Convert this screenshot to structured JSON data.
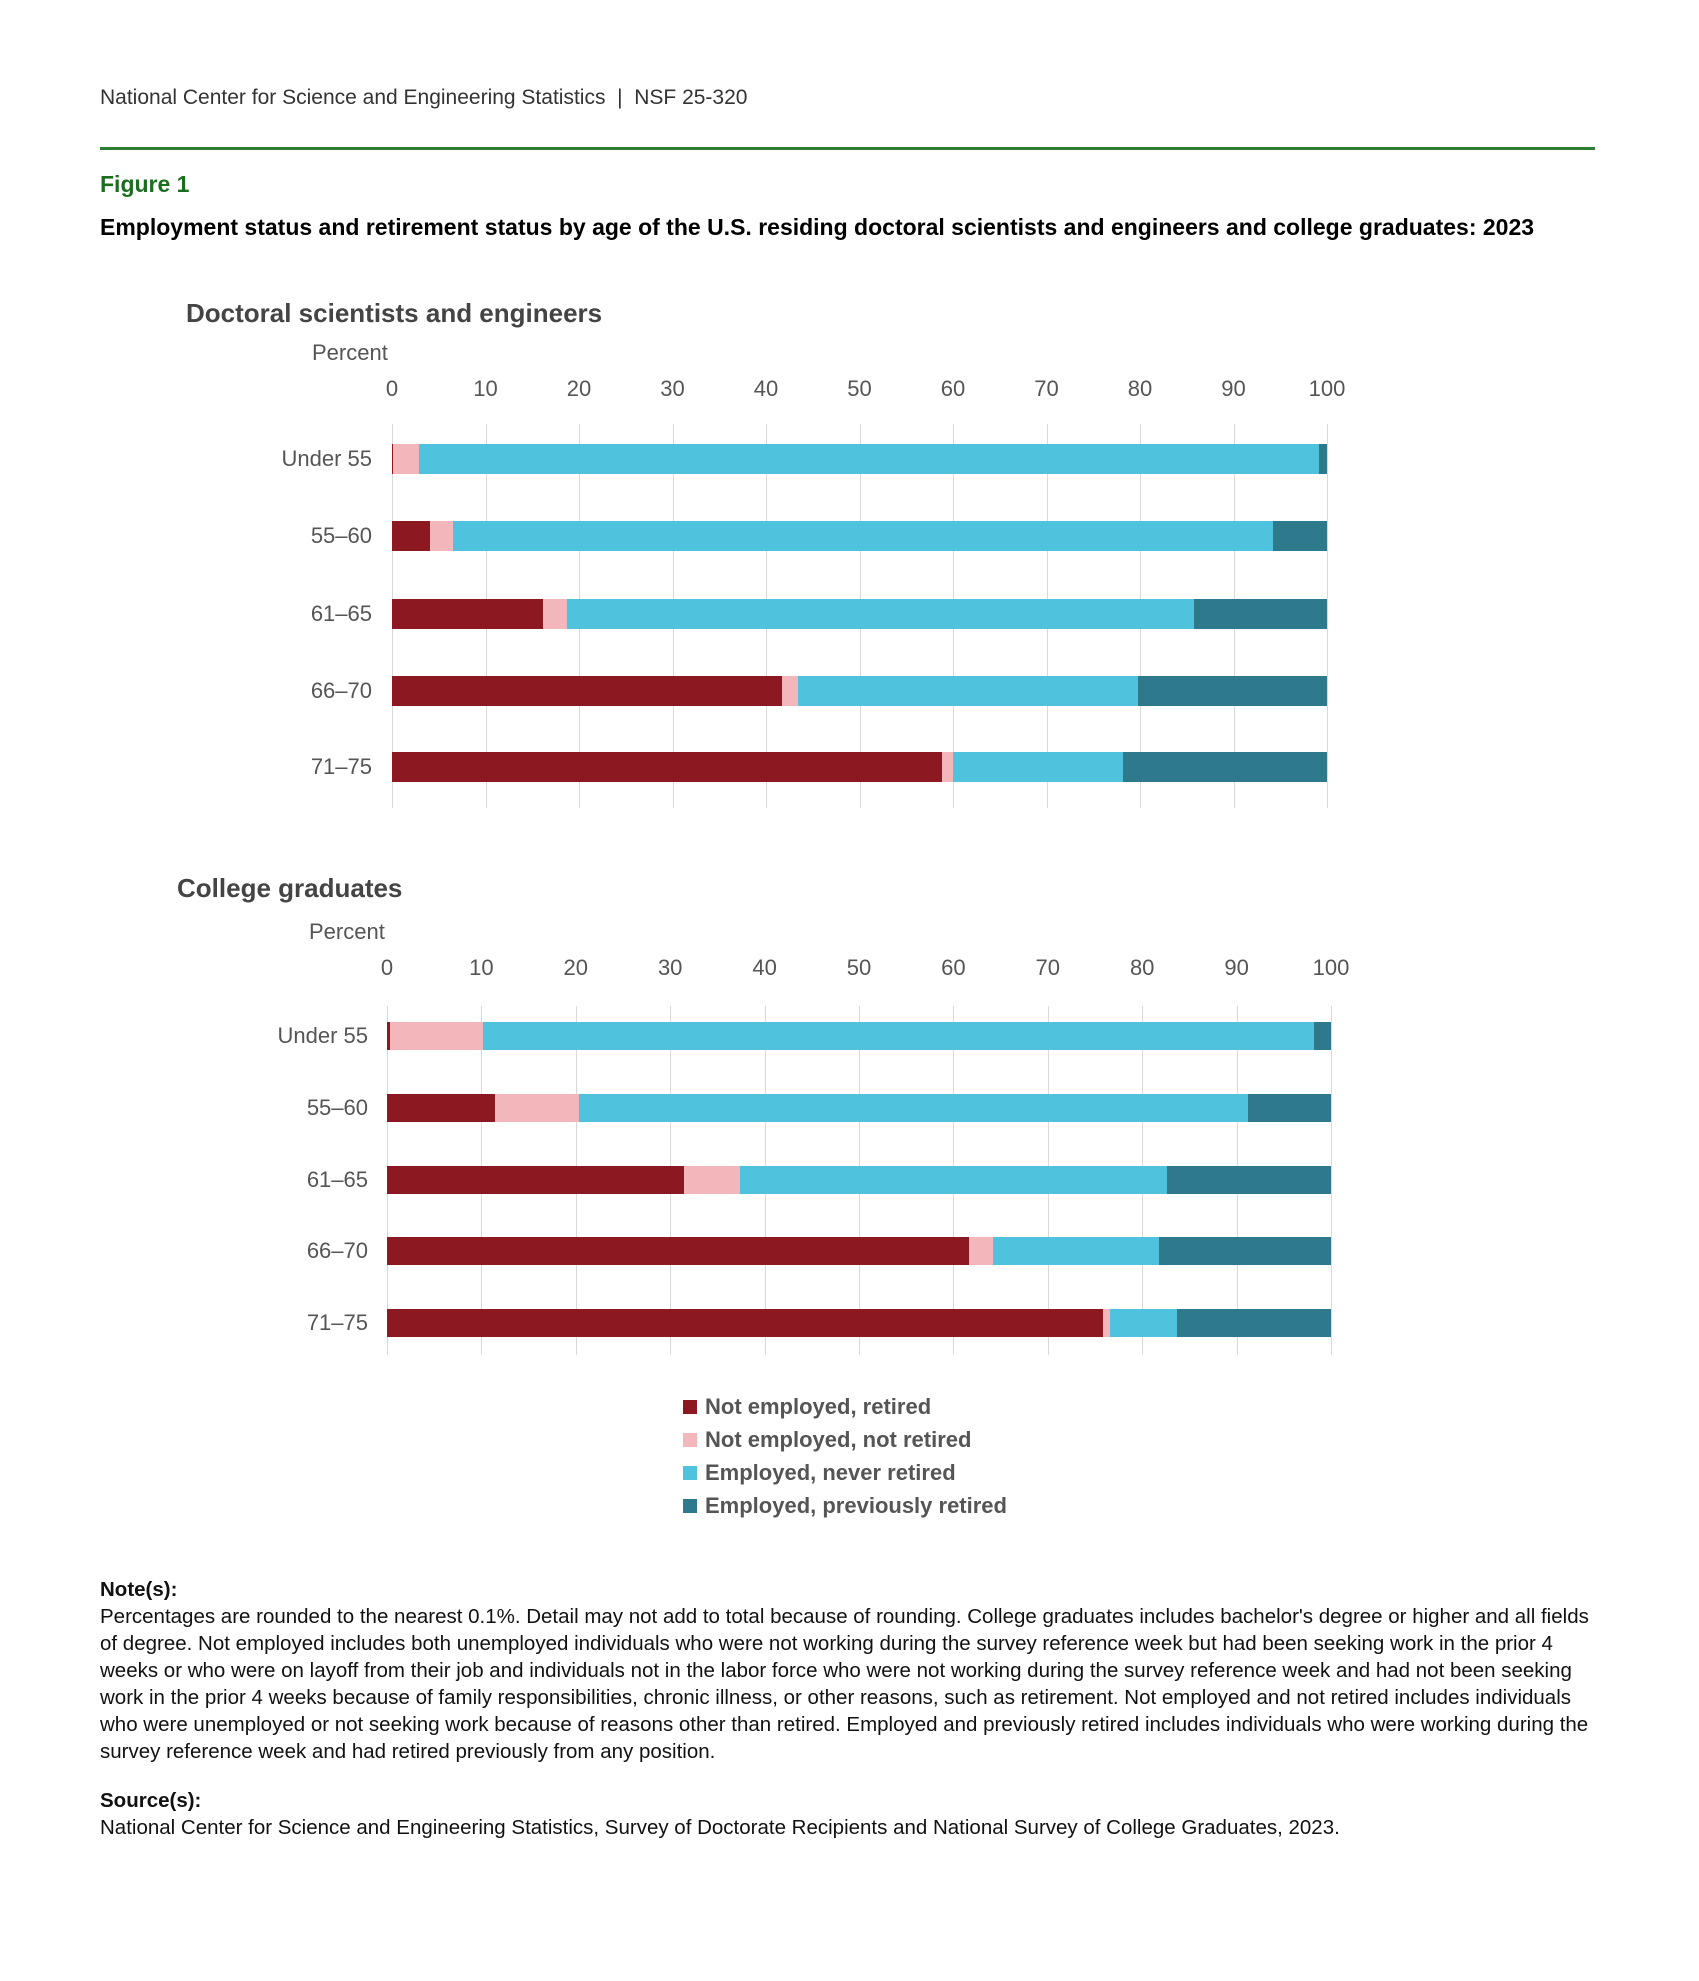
{
  "header": {
    "text": "National Center for Science and Engineering Statistics  |  NSF 25-320"
  },
  "figure": {
    "label": "Figure 1",
    "title": "Employment status and retirement status by age of the U.S. residing doctoral scientists and engineers and college graduates: 2023"
  },
  "colors": {
    "Not employed, retired": "#8c1822",
    "Not employed, not retired": "#f3b6bb",
    "Employed, never retired": "#4fc2de",
    "Employed, previously retired": "#2e7a8c"
  },
  "legend": [
    "Not employed, retired",
    "Not employed, not retired",
    "Employed, never retired",
    "Employed, previously retired"
  ],
  "chart_data": [
    {
      "type": "bar",
      "orientation": "horizontal",
      "stacked": true,
      "title": "Doctoral scientists and engineers",
      "xlabel": "Percent",
      "xlim": [
        0,
        100
      ],
      "xticks": [
        "0",
        "10",
        "20",
        "30",
        "40",
        "50",
        "60",
        "70",
        "80",
        "90",
        "100"
      ],
      "categories": [
        "Under 55",
        "55–60",
        "61–65",
        "66–70",
        "71–75"
      ],
      "series": [
        {
          "name": "Not employed, retired",
          "values": [
            0.1,
            4.1,
            16.2,
            41.7,
            58.8
          ]
        },
        {
          "name": "Not employed, not retired",
          "values": [
            2.8,
            2.4,
            2.5,
            1.7,
            1.2
          ]
        },
        {
          "name": "Employed, never retired",
          "values": [
            96.2,
            87.7,
            67.1,
            36.4,
            18.2
          ]
        },
        {
          "name": "Employed, previously retired",
          "values": [
            0.9,
            5.8,
            14.2,
            20.2,
            21.8
          ]
        }
      ]
    },
    {
      "type": "bar",
      "orientation": "horizontal",
      "stacked": true,
      "title": "College graduates",
      "xlabel": "Percent",
      "xlim": [
        0,
        100
      ],
      "xticks": [
        "0",
        "10",
        "20",
        "30",
        "40",
        "50",
        "60",
        "70",
        "80",
        "90",
        "100"
      ],
      "categories": [
        "Under 55",
        "55–60",
        "61–65",
        "66–70",
        "71–75"
      ],
      "series": [
        {
          "name": "Not employed, retired",
          "values": [
            0.3,
            11.4,
            31.5,
            61.7,
            75.8
          ]
        },
        {
          "name": "Not employed, not retired",
          "values": [
            9.9,
            8.9,
            5.9,
            2.5,
            0.8
          ]
        },
        {
          "name": "Employed, never retired",
          "values": [
            88.0,
            70.9,
            45.2,
            17.6,
            7.1
          ]
        },
        {
          "name": "Employed, previously retired",
          "values": [
            1.8,
            8.8,
            17.4,
            18.2,
            16.3
          ]
        }
      ]
    }
  ],
  "notes": {
    "label": "Note(s):",
    "text": "Percentages are rounded to the nearest 0.1%. Detail may not add to total because of rounding. College graduates includes bachelor's degree or higher and all fields of degree. Not employed includes both unemployed individuals who were not working during the survey reference week but had been seeking work in the prior 4 weeks or who were on layoff from their job and individuals not in the labor force who were not working during the survey reference week and had not been seeking work in the prior 4 weeks because of family responsibilities, chronic illness, or other reasons, such as retirement. Not employed and not retired includes individuals who were unemployed or not seeking work because of reasons other than retired. Employed and previously retired includes individuals who were working during the survey reference week and had retired previously from any position."
  },
  "source": {
    "label": "Source(s):",
    "text": "National Center for Science and Engineering Statistics, Survey of Doctorate Recipients and National Survey of College Graduates, 2023."
  }
}
